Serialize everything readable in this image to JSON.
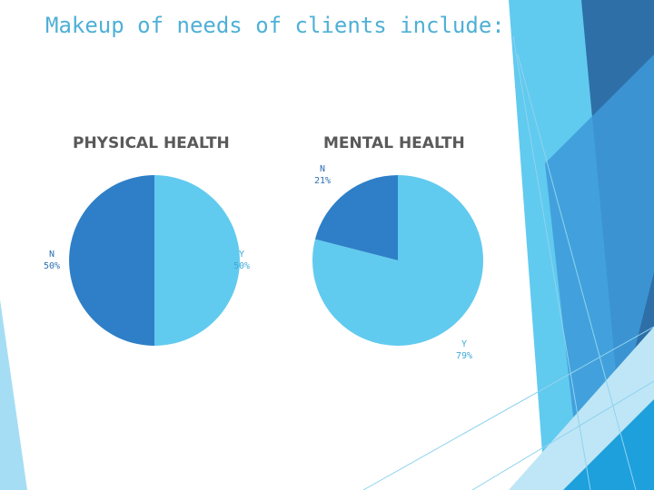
{
  "slide": {
    "title": "Makeup of needs of clients include:"
  },
  "colors": {
    "dark_slice": "#2e7fc7",
    "light_slice": "#61caef",
    "label_dark": "#2e6fb0",
    "label_light": "#3fa9d9",
    "title_color": "#4fb0d6"
  },
  "chart_data": [
    {
      "type": "pie",
      "title": "PHYSICAL HEALTH",
      "categories": [
        "Y",
        "N"
      ],
      "values": [
        50,
        50
      ],
      "value_labels": [
        "50%",
        "50%"
      ]
    },
    {
      "type": "pie",
      "title": "MENTAL HEALTH",
      "categories": [
        "N",
        "Y"
      ],
      "values": [
        21,
        79
      ],
      "value_labels": [
        "21%",
        "79%"
      ]
    }
  ]
}
